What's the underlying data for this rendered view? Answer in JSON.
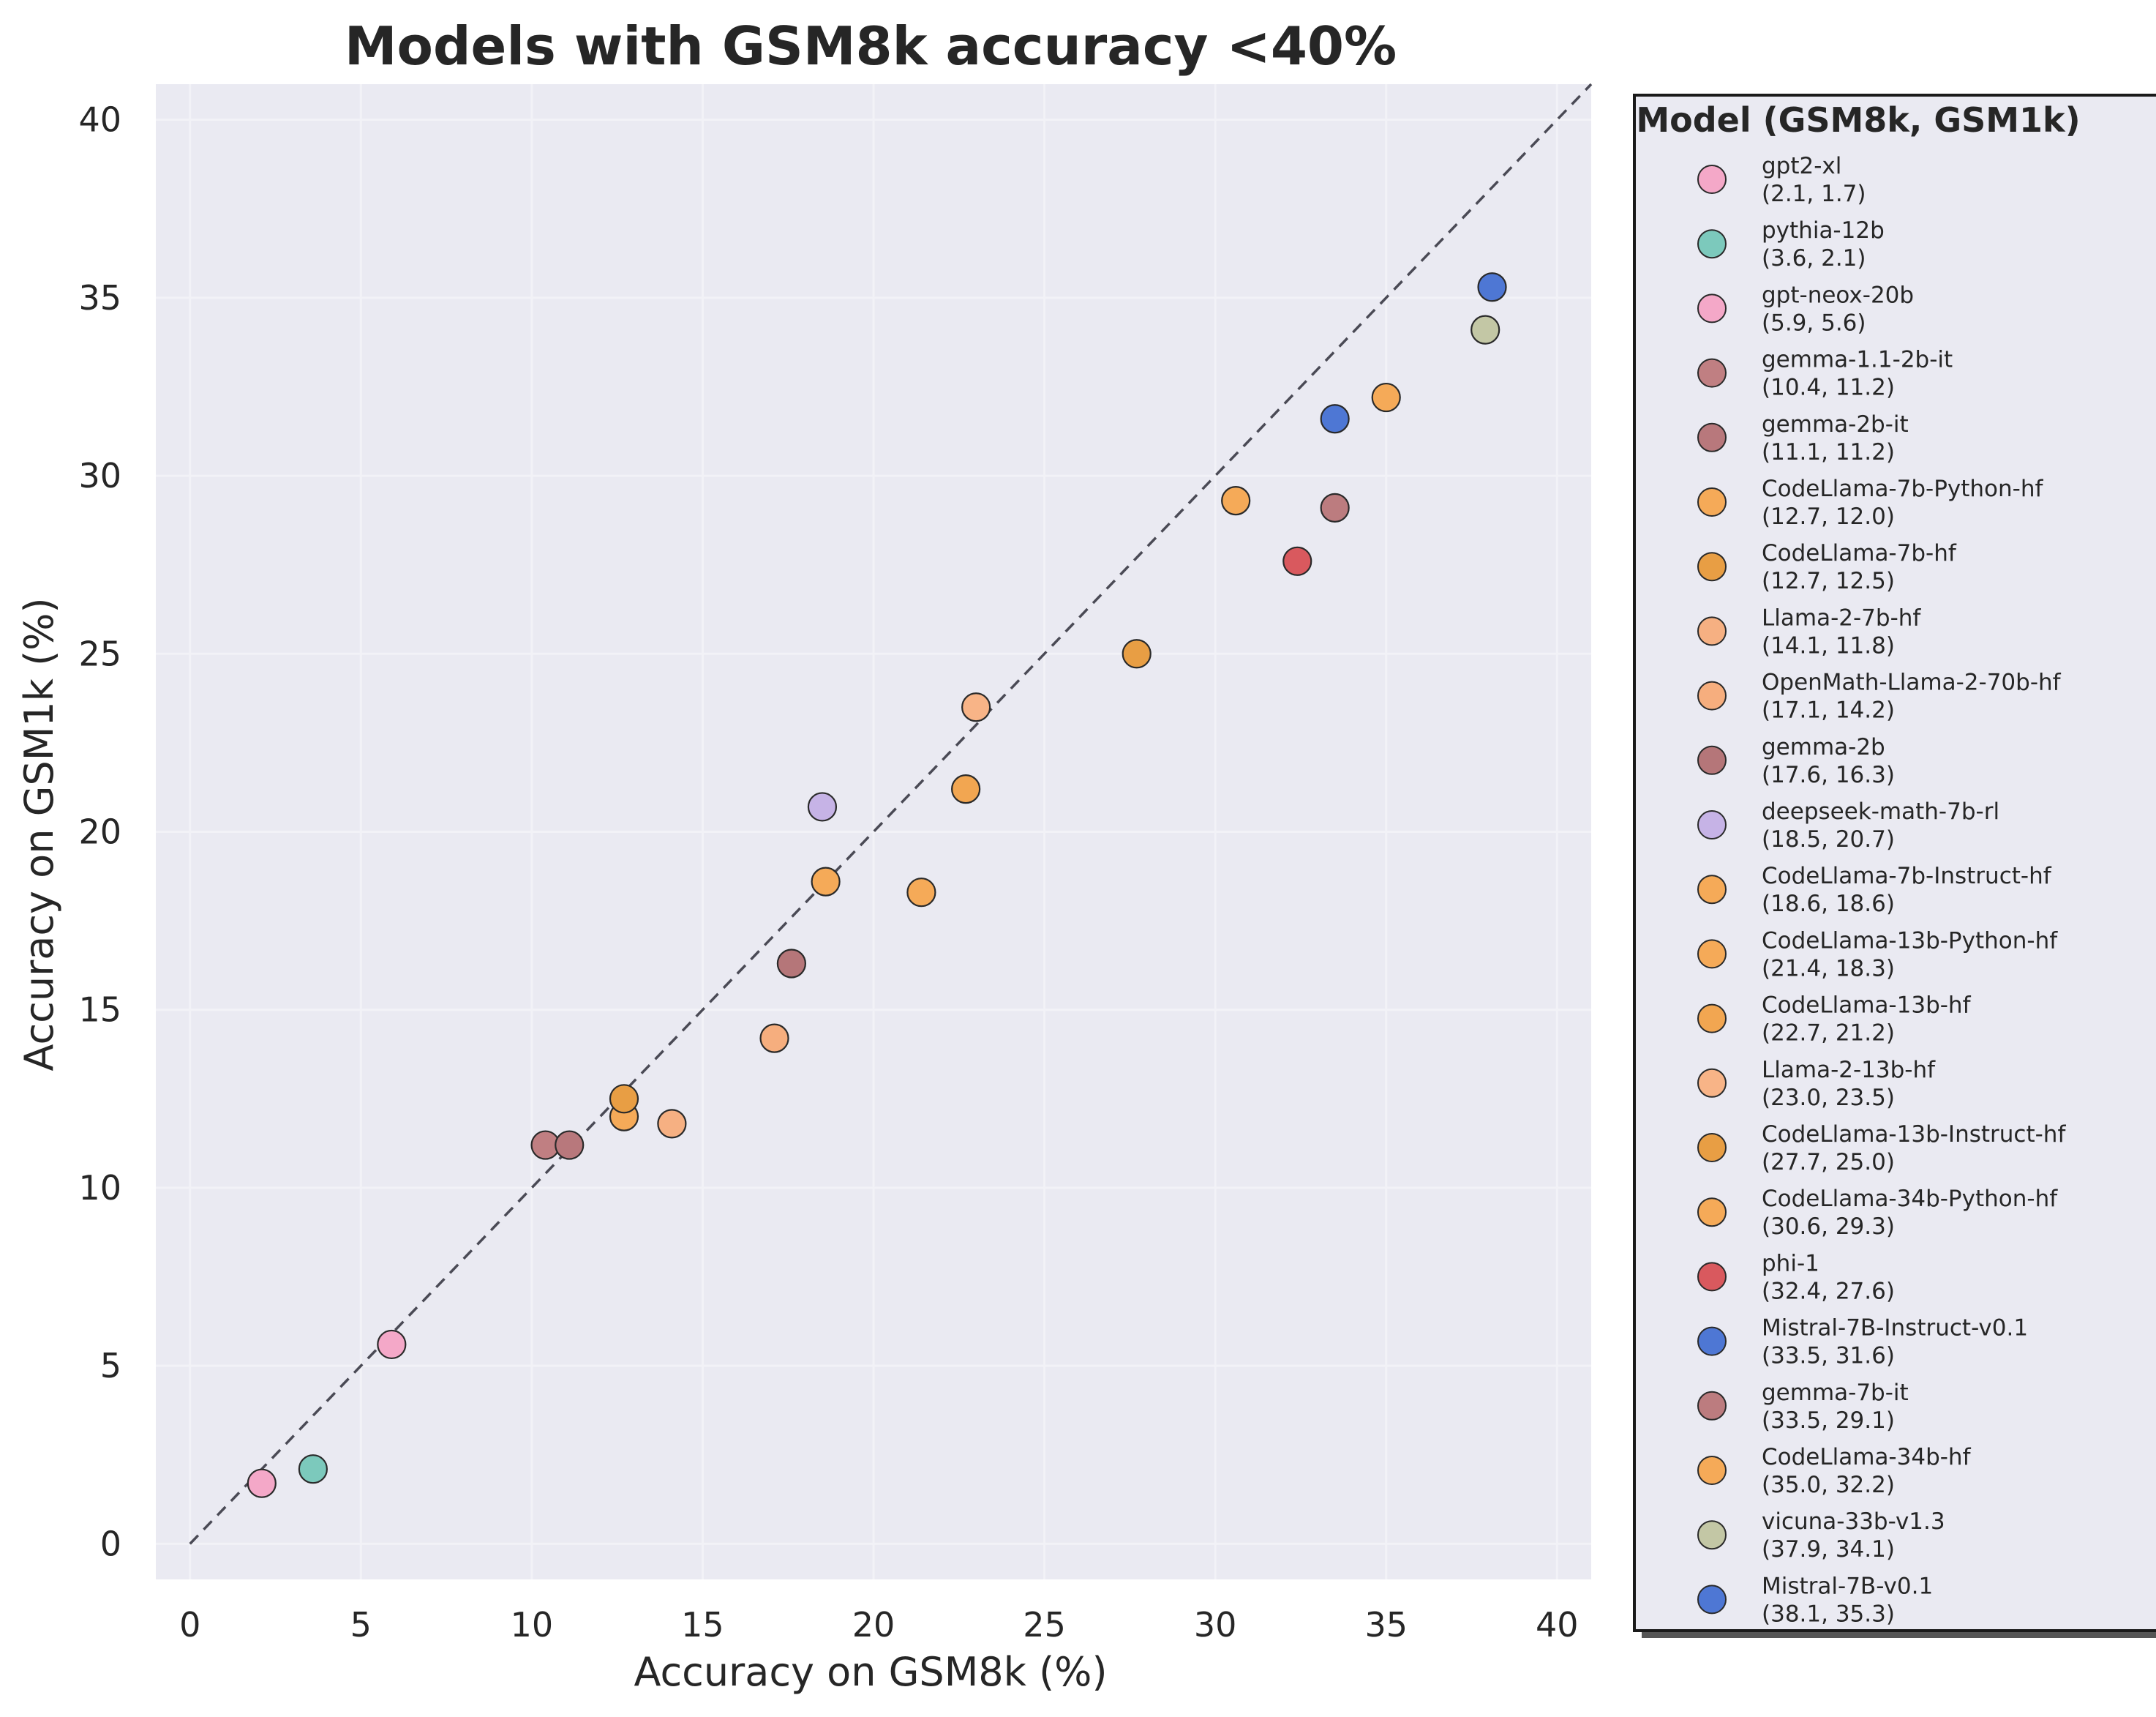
{
  "chart_data": {
    "type": "scatter",
    "title": "Models with GSM8k accuracy <40%",
    "xlabel": "Accuracy on GSM8k (%)",
    "ylabel": "Accuracy on GSM1k (%)",
    "xlim": [
      -1,
      41
    ],
    "ylim": [
      -1,
      41
    ],
    "xticks": [
      0,
      5,
      10,
      15,
      20,
      25,
      30,
      35,
      40
    ],
    "yticks": [
      0,
      5,
      10,
      15,
      20,
      25,
      30,
      35,
      40
    ],
    "grid": true,
    "reference_line": "y = x (dashed)",
    "legend_title": "Model (GSM8k, GSM1k)",
    "legend_placement": "outside-right",
    "points": [
      {
        "name": "gpt2-xl",
        "label": "(2.1, 1.7)",
        "x": 2.1,
        "y": 1.7,
        "color": "#f4a8c8"
      },
      {
        "name": "pythia-12b",
        "label": "(3.6, 2.1)",
        "x": 3.6,
        "y": 2.1,
        "color": "#7cc9bc"
      },
      {
        "name": "gpt-neox-20b",
        "label": "(5.9, 5.6)",
        "x": 5.9,
        "y": 5.6,
        "color": "#f4a8c8"
      },
      {
        "name": "gemma-1.1-2b-it",
        "label": "(10.4, 11.2)",
        "x": 10.4,
        "y": 11.2,
        "color": "#c07f82"
      },
      {
        "name": "gemma-2b-it",
        "label": "(11.1, 11.2)",
        "x": 11.1,
        "y": 11.2,
        "color": "#b8787c"
      },
      {
        "name": "CodeLlama-7b-Python-hf",
        "label": "(12.7, 12.0)",
        "x": 12.7,
        "y": 12.0,
        "color": "#f5aa58"
      },
      {
        "name": "CodeLlama-7b-hf",
        "label": "(12.7, 12.5)",
        "x": 12.7,
        "y": 12.5,
        "color": "#e89e44"
      },
      {
        "name": "Llama-2-7b-hf",
        "label": "(14.1, 11.8)",
        "x": 14.1,
        "y": 11.8,
        "color": "#f6b082"
      },
      {
        "name": "OpenMath-Llama-2-70b-hf",
        "label": "(17.1, 14.2)",
        "x": 17.1,
        "y": 14.2,
        "color": "#f6ae7e"
      },
      {
        "name": "gemma-2b",
        "label": "(17.6, 16.3)",
        "x": 17.6,
        "y": 16.3,
        "color": "#b57679"
      },
      {
        "name": "deepseek-math-7b-rl",
        "label": "(18.5, 20.7)",
        "x": 18.5,
        "y": 20.7,
        "color": "#c6b3e6"
      },
      {
        "name": "CodeLlama-7b-Instruct-hf",
        "label": "(18.6, 18.6)",
        "x": 18.6,
        "y": 18.6,
        "color": "#f5aa58"
      },
      {
        "name": "CodeLlama-13b-Python-hf",
        "label": "(21.4, 18.3)",
        "x": 21.4,
        "y": 18.3,
        "color": "#f5aa58"
      },
      {
        "name": "CodeLlama-13b-hf",
        "label": "(22.7, 21.2)",
        "x": 22.7,
        "y": 21.2,
        "color": "#f2a651"
      },
      {
        "name": "Llama-2-13b-hf",
        "label": "(23.0, 23.5)",
        "x": 23.0,
        "y": 23.5,
        "color": "#f8b487"
      },
      {
        "name": "CodeLlama-13b-Instruct-hf",
        "label": "(27.7, 25.0)",
        "x": 27.7,
        "y": 25.0,
        "color": "#e89e44"
      },
      {
        "name": "CodeLlama-34b-Python-hf",
        "label": "(30.6, 29.3)",
        "x": 30.6,
        "y": 29.3,
        "color": "#f5aa58"
      },
      {
        "name": "phi-1",
        "label": "(32.4, 27.6)",
        "x": 32.4,
        "y": 27.6,
        "color": "#d9595e"
      },
      {
        "name": "Mistral-7B-Instruct-v0.1",
        "label": "(33.5, 31.6)",
        "x": 33.5,
        "y": 31.6,
        "color": "#4e77d4"
      },
      {
        "name": "gemma-7b-it",
        "label": "(33.5, 29.1)",
        "x": 33.5,
        "y": 29.1,
        "color": "#bc7c7f"
      },
      {
        "name": "CodeLlama-34b-hf",
        "label": "(35.0, 32.2)",
        "x": 35.0,
        "y": 32.2,
        "color": "#f5aa58"
      },
      {
        "name": "vicuna-33b-v1.3",
        "label": "(37.9, 34.1)",
        "x": 37.9,
        "y": 34.1,
        "color": "#c3c7a5"
      },
      {
        "name": "Mistral-7B-v0.1",
        "label": "(38.1, 35.3)",
        "x": 38.1,
        "y": 35.3,
        "color": "#4e77d4"
      }
    ]
  }
}
